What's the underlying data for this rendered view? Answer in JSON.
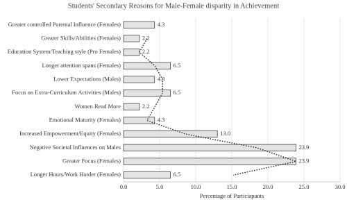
{
  "chart_data": {
    "type": "bar",
    "orientation": "horizontal",
    "title": "Students' Secondary Reasons for Male-Female disparity in Achievement",
    "xlabel": "Percentage of Particiapants",
    "categories": [
      "Greater controlled Parental Influence (Females)",
      "Greater Skills/Abilities (Females)",
      "Education System/Teaching style (Pro Females)",
      "Longer attention spans (Females)",
      "Lower Expectations (Males)",
      "Focus on Extra-Curriculum Activities (Males)",
      "Women Read More",
      "Emotional Maturity (Females)",
      "Increased Empowerment/Equity (Females)",
      "Negative Societal Influences on Males",
      "Greater Focus (Females)",
      "Longer Hours/Work Harder (Females)"
    ],
    "values": [
      4.3,
      2.2,
      2.2,
      6.5,
      4.3,
      6.5,
      2.2,
      4.3,
      13.0,
      23.9,
      23.9,
      6.5
    ],
    "value_labels": [
      "4.3",
      "2.2",
      "2.2",
      "6.5",
      "4.3",
      "6.5",
      "2.2",
      "4.3",
      "13.0",
      "23.9",
      "23.9",
      "6.5"
    ],
    "color": "#e3e3e3",
    "xlim": [
      0,
      30
    ],
    "xticks": [
      {
        "value": 0,
        "label": "0.0"
      },
      {
        "value": 5,
        "label": "5.0"
      },
      {
        "value": 10,
        "label": "10.0"
      },
      {
        "value": 15,
        "label": "15.0"
      },
      {
        "value": 20,
        "label": "20.0"
      },
      {
        "value": 25,
        "label": "25.0"
      },
      {
        "value": 30,
        "label": "30.0"
      }
    ],
    "grid": true,
    "trendline": {
      "type": "moving_average",
      "period": 2
    }
  }
}
